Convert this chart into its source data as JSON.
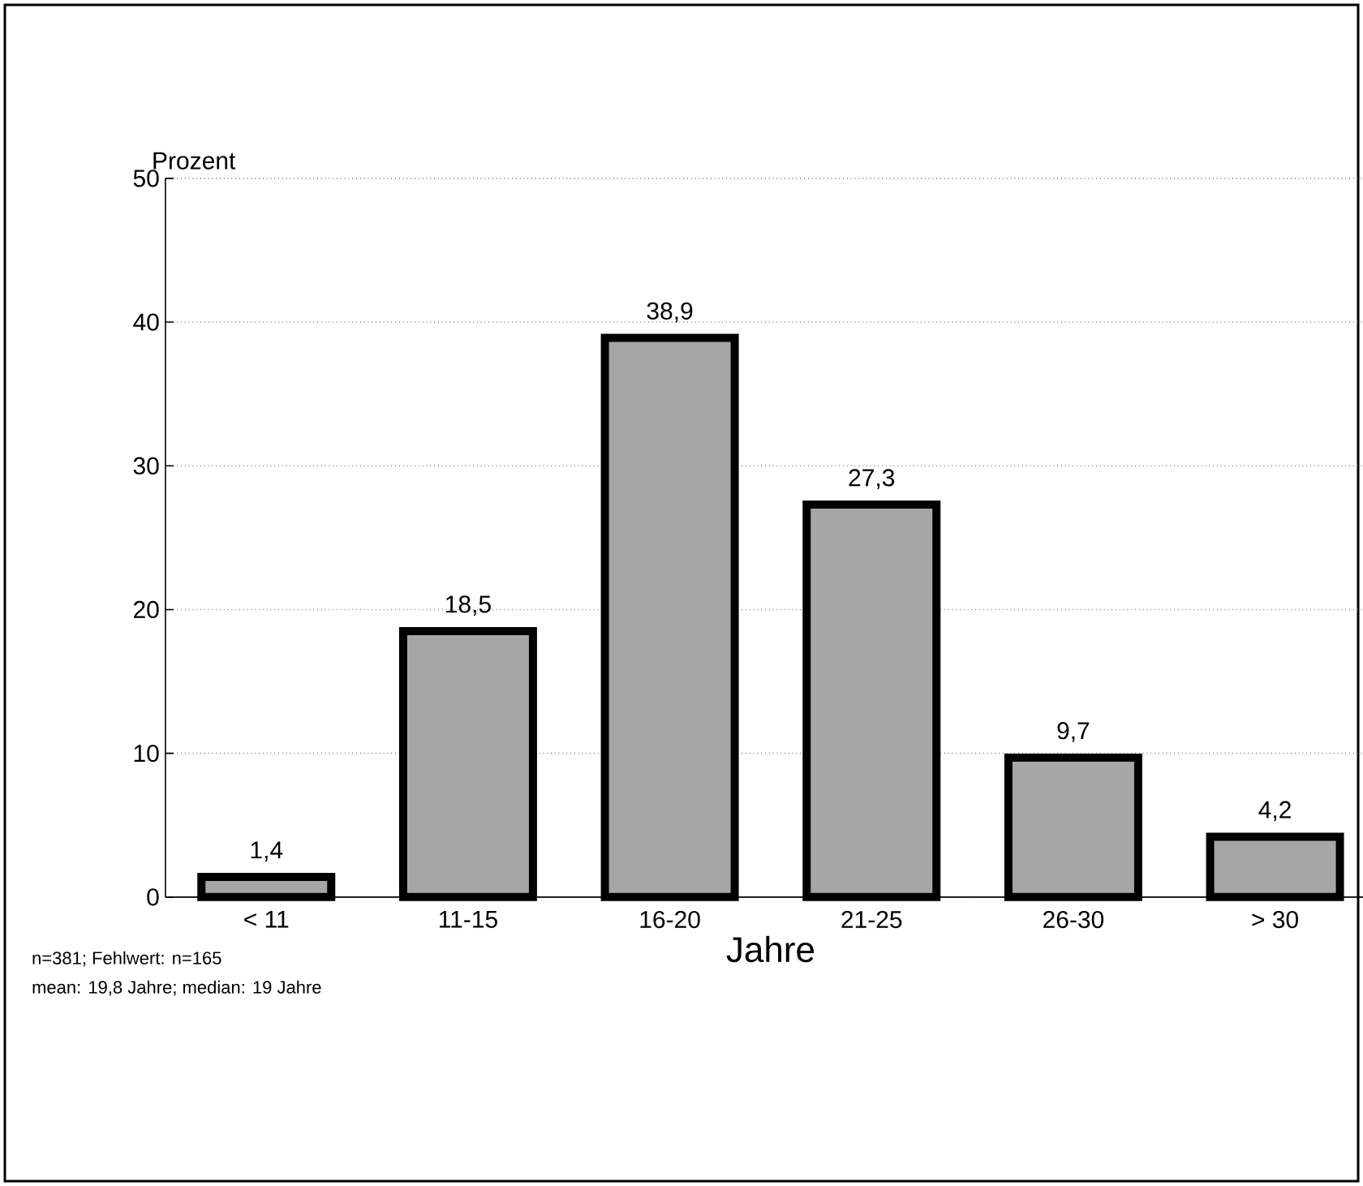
{
  "chart_data": {
    "type": "bar",
    "categories": [
      "< 11",
      "11-15",
      "16-20",
      "21-25",
      "26-30",
      "> 30"
    ],
    "values": [
      1.4,
      18.5,
      38.9,
      27.3,
      9.7,
      4.2
    ],
    "value_labels": [
      "1,4",
      "18,5",
      "38,9",
      "27,3",
      "9,7",
      "4,2"
    ],
    "color": "#a6a6a6",
    "ylabel": "Prozent",
    "xlabel": "Jahre",
    "ylim": [
      0,
      50
    ],
    "yticks": [
      0,
      10,
      20,
      30,
      40,
      50
    ],
    "grid": "y",
    "annotations": [
      "n=381; Fehlwert: n=165",
      "mean: 19,8 Jahre; median: 19 Jahre"
    ]
  }
}
